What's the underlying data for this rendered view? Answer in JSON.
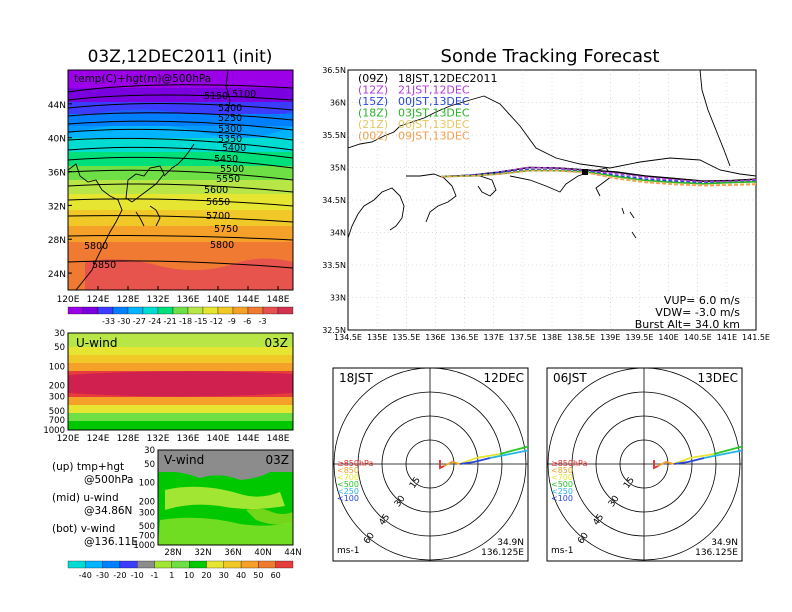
{
  "titles": {
    "left_title": "03Z,12DEC2011 (init)",
    "right_title": "Sonde Tracking Forecast"
  },
  "colors": {
    "temp_colorbar": [
      "#9b00e8",
      "#7a00e0",
      "#3c3cff",
      "#0080ff",
      "#00b4ff",
      "#00dcd2",
      "#00e07a",
      "#6ee046",
      "#b8e646",
      "#e6e632",
      "#f0c828",
      "#f5a028",
      "#f07a32",
      "#e65050",
      "#d23250"
    ],
    "wind_colorbar": [
      "#00dcd2",
      "#00b4ff",
      "#0080ff",
      "#3c3cff",
      "#8c8c8c",
      "#a0e632",
      "#6ee046",
      "#00c800",
      "#e6e632",
      "#f0c828",
      "#f5a028",
      "#f07a32",
      "#e63c3c"
    ],
    "track_colors": [
      "#000000",
      "#b43cdc",
      "#2846dc",
      "#28b428",
      "#e6c864",
      "#f0a050"
    ],
    "layer_colors": [
      "#e62828",
      "#f0a028",
      "#e6e632",
      "#28c828",
      "#28b4e6",
      "#2846dc"
    ]
  },
  "map_panel": {
    "label": "temp(C)+hgt(m)@500hPa",
    "lon_labels": [
      "120E",
      "124E",
      "128E",
      "132E",
      "136E",
      "140E",
      "144E",
      "148E"
    ],
    "lat_labels": [
      "44N",
      "40N",
      "36N",
      "32N",
      "28N",
      "24N"
    ],
    "contour_labels": [
      "5150",
      "5200",
      "5250",
      "5300",
      "5350",
      "5400",
      "5450",
      "5500",
      "5550",
      "5600",
      "5650",
      "5700",
      "5750",
      "5800",
      "5800",
      "5850",
      "5850"
    ],
    "top_contour_label": "5100",
    "colorbar_labels": [
      "-33",
      "-30",
      "-27",
      "-24",
      "-21",
      "-18",
      "-15",
      "-12",
      "-9",
      "-6",
      "-3"
    ]
  },
  "u_panel": {
    "label": "U-wind",
    "time": "03Z",
    "y_labels": [
      "30",
      "50",
      "100",
      "200",
      "300",
      "500",
      "700",
      "1000"
    ],
    "x_labels": [
      "120E",
      "124E",
      "128E",
      "132E",
      "136E",
      "140E",
      "144E",
      "148E"
    ]
  },
  "v_panel": {
    "label": "V-wind",
    "time": "03Z",
    "y_labels": [
      "30",
      "50",
      "100",
      "200",
      "300",
      "500",
      "700",
      "1000"
    ],
    "x_labels": [
      "28N",
      "32N",
      "36N",
      "40N",
      "44N"
    ]
  },
  "legend_notes": [
    {
      "a": "(up) tmp+hgt",
      "b": "@500hPa"
    },
    {
      "a": "(mid) u-wind",
      "b": "@34.86N"
    },
    {
      "a": "(bot) v-wind",
      "b": "@136.11E"
    }
  ],
  "wind_colorbar_labels": [
    "-40",
    "-30",
    "-20",
    "-10",
    "-1",
    "1",
    "10",
    "20",
    "30",
    "40",
    "50",
    "60"
  ],
  "track_panel": {
    "y_labels": [
      "36.5N",
      "36N",
      "35.5N",
      "35N",
      "34.5N",
      "34N",
      "33.5N",
      "33N",
      "32.5N"
    ],
    "x_labels": [
      "134.5E",
      "135E",
      "135.5E",
      "136E",
      "136.5E",
      "137E",
      "137.5E",
      "138E",
      "138.5E",
      "139E",
      "139.5E",
      "140E",
      "140.5E",
      "141E",
      "141.5E"
    ],
    "legend": [
      {
        "a": "(09Z)",
        "b": "18JST,12DEC2011"
      },
      {
        "a": "(12Z)",
        "b": "21JST,12DEC"
      },
      {
        "a": "(15Z)",
        "b": "00JST,13DEC"
      },
      {
        "a": "(18Z)",
        "b": "03JST,13DEC"
      },
      {
        "a": "(21Z)",
        "b": "06JST,13DEC"
      },
      {
        "a": "(00Z)",
        "b": "09JST,13DEC"
      }
    ],
    "params": [
      "VUP=  6.0  m/s",
      "VDW= -3.0  m/s",
      "Burst Alt= 34.0  km"
    ]
  },
  "polar_left": {
    "time_label": "18JST",
    "date_label": "12DEC",
    "ring_labels": [
      "15",
      "30",
      "45",
      "60"
    ],
    "layer_labels": [
      "≥850hPa",
      "<850",
      "<700",
      "<500",
      "<250",
      "<100"
    ],
    "unit": "ms-1",
    "lat": "34.9N",
    "lon": "136.125E"
  },
  "polar_right": {
    "time_label": "06JST",
    "date_label": "13DEC",
    "ring_labels": [
      "15",
      "30",
      "45",
      "60"
    ],
    "layer_labels": [
      "≥850hPa",
      "<850",
      "<700",
      "<500",
      "<250",
      "<100"
    ],
    "unit": "ms-1",
    "lat": "34.9N",
    "lon": "136.125E"
  },
  "chart_data": [
    {
      "type": "heatmap",
      "title": "03Z,12DEC2011 (init)",
      "subtitle": "temp(C)+hgt(m)@500hPa",
      "x_ticks": [
        "120E",
        "124E",
        "128E",
        "132E",
        "136E",
        "140E",
        "144E",
        "148E"
      ],
      "y_ticks": [
        "24N",
        "28N",
        "32N",
        "36N",
        "40N",
        "44N"
      ],
      "xlim": [
        120,
        150
      ],
      "ylim": [
        22,
        48
      ],
      "colorbar_levels": [
        -33,
        -30,
        -27,
        -24,
        -21,
        -18,
        -15,
        -12,
        -9,
        -6,
        -3
      ],
      "contour_levels_m": [
        5100,
        5150,
        5200,
        5250,
        5300,
        5350,
        5400,
        5450,
        5500,
        5550,
        5600,
        5650,
        5700,
        5750,
        5800,
        5850
      ]
    },
    {
      "type": "heatmap",
      "title": "U-wind",
      "subtitle": "03Z",
      "x_ticks": [
        "120E",
        "124E",
        "128E",
        "132E",
        "136E",
        "140E",
        "144E",
        "148E"
      ],
      "y_ticks_hPa": [
        30,
        50,
        100,
        200,
        300,
        500,
        700,
        1000
      ],
      "xlim": [
        120,
        150
      ]
    },
    {
      "type": "heatmap",
      "title": "V-wind",
      "subtitle": "03Z",
      "x_ticks": [
        "28N",
        "32N",
        "36N",
        "40N",
        "44N"
      ],
      "y_ticks_hPa": [
        30,
        50,
        100,
        200,
        300,
        500,
        700,
        1000
      ],
      "xlim": [
        26,
        44
      ],
      "colorbar_levels": [
        -40,
        -30,
        -20,
        -10,
        -1,
        1,
        10,
        20,
        30,
        40,
        50,
        60
      ]
    },
    {
      "type": "line",
      "title": "Sonde Tracking Forecast",
      "xlim": [
        134.5,
        141.5
      ],
      "ylim": [
        32.5,
        36.5
      ],
      "series": [
        {
          "name": "(09Z) 18JST,12DEC2011",
          "x": [
            136.1,
            136.6,
            137.1,
            137.6,
            138.1,
            138.6,
            139.1,
            139.6,
            140.1,
            140.6,
            141.1,
            141.5
          ],
          "y": [
            34.86,
            34.88,
            34.93,
            35.0,
            34.99,
            34.96,
            34.93,
            34.87,
            34.83,
            34.79,
            34.8,
            34.82
          ]
        },
        {
          "name": "(12Z) 21JST,12DEC",
          "x": [
            136.1,
            136.6,
            137.1,
            137.6,
            138.1,
            138.6,
            139.1,
            139.6,
            140.1,
            140.6,
            141.1,
            141.5
          ],
          "y": [
            34.86,
            34.88,
            34.93,
            35.0,
            34.99,
            34.95,
            34.91,
            34.85,
            34.81,
            34.78,
            34.79,
            34.81
          ]
        },
        {
          "name": "(15Z) 00JST,13DEC",
          "x": [
            136.1,
            136.6,
            137.1,
            137.6,
            138.1,
            138.6,
            139.1,
            139.6,
            140.1,
            140.6,
            141.1,
            141.5
          ],
          "y": [
            34.86,
            34.88,
            34.92,
            34.97,
            34.96,
            34.94,
            34.88,
            34.82,
            34.79,
            34.76,
            34.77,
            34.79
          ]
        },
        {
          "name": "(18Z) 03JST,13DEC",
          "x": [
            136.1,
            136.6,
            137.1,
            137.6,
            138.1,
            138.6,
            139.1,
            139.6,
            140.1,
            140.6,
            141.1,
            141.5
          ],
          "y": [
            34.86,
            34.87,
            34.9,
            34.95,
            34.95,
            34.93,
            34.86,
            34.8,
            34.77,
            34.75,
            34.77,
            34.78
          ]
        },
        {
          "name": "(21Z) 06JST,13DEC",
          "x": [
            136.1,
            136.6,
            137.1,
            137.6,
            138.1,
            138.6,
            139.1,
            139.6,
            140.1,
            140.6,
            141.1,
            141.5
          ],
          "y": [
            34.86,
            34.87,
            34.9,
            34.95,
            34.95,
            34.92,
            34.84,
            34.78,
            34.75,
            34.73,
            34.74,
            34.75
          ]
        },
        {
          "name": "(00Z) 09JST,13DEC",
          "x": [
            136.1,
            136.6,
            137.1,
            137.6,
            138.1,
            138.6,
            139.1,
            139.6,
            140.1,
            140.6,
            141.1,
            141.5
          ],
          "y": [
            34.86,
            34.87,
            34.9,
            34.95,
            34.95,
            34.92,
            34.83,
            34.77,
            34.74,
            34.72,
            34.73,
            34.74
          ]
        }
      ]
    }
  ]
}
